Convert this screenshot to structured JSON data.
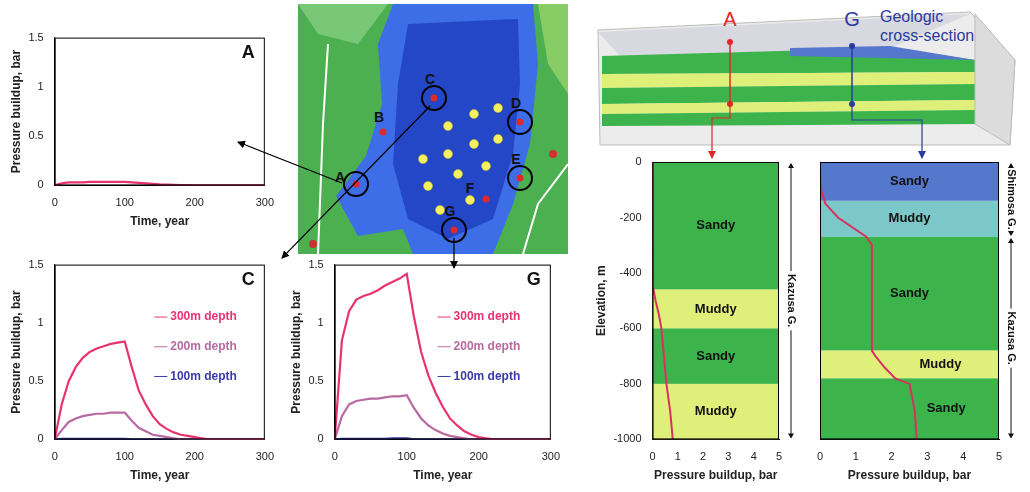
{
  "chart_data": [
    {
      "type": "line",
      "title": "A",
      "x_label": "Time, year",
      "y_label": "Pressure buildup, bar",
      "xlim": [
        0,
        300
      ],
      "xticks": [
        0,
        100,
        200,
        300
      ],
      "ylim": [
        0,
        1.5
      ],
      "yticks": [
        0,
        0.5,
        1,
        1.5
      ],
      "grid": false,
      "x": [
        0,
        10,
        20,
        30,
        40,
        50,
        60,
        70,
        80,
        90,
        100,
        110,
        120,
        130,
        140,
        150,
        160,
        170,
        180,
        190,
        200,
        210,
        220,
        230,
        240,
        250,
        260,
        270,
        280,
        290,
        300
      ],
      "series": [
        {
          "color": "#e8336f",
          "values": [
            0,
            0.02,
            0.03,
            0.03,
            0.03,
            0.035,
            0.035,
            0.035,
            0.035,
            0.035,
            0.035,
            0.03,
            0.025,
            0.02,
            0.015,
            0.01,
            0.008,
            0.005,
            0.003,
            0.002,
            0.001,
            0,
            0,
            0,
            0,
            0,
            0,
            0,
            0,
            0,
            0
          ]
        }
      ]
    },
    {
      "type": "line",
      "title": "C",
      "x_label": "Time, year",
      "y_label": "Pressure buildup, bar",
      "xlim": [
        0,
        300
      ],
      "xticks": [
        0,
        100,
        200,
        300
      ],
      "ylim": [
        0,
        1.5
      ],
      "yticks": [
        0,
        0.5,
        1,
        1.5
      ],
      "grid": false,
      "x": [
        0,
        10,
        20,
        30,
        40,
        50,
        60,
        70,
        80,
        90,
        100,
        110,
        120,
        130,
        140,
        150,
        160,
        170,
        180,
        190,
        200,
        210,
        220,
        230,
        240,
        250,
        260,
        270,
        280,
        290,
        300
      ],
      "series": [
        {
          "name": "300m depth",
          "color": "#e8336f",
          "values": [
            0,
            0.3,
            0.5,
            0.62,
            0.7,
            0.75,
            0.78,
            0.8,
            0.82,
            0.83,
            0.84,
            0.62,
            0.42,
            0.3,
            0.2,
            0.13,
            0.09,
            0.06,
            0.04,
            0.03,
            0.02,
            0.01,
            0,
            0,
            0,
            0,
            0,
            0,
            0,
            0,
            0
          ]
        },
        {
          "name": "200m depth",
          "color": "#b86aa0",
          "values": [
            0,
            0.08,
            0.15,
            0.18,
            0.2,
            0.21,
            0.22,
            0.22,
            0.23,
            0.23,
            0.23,
            0.16,
            0.1,
            0.07,
            0.04,
            0.03,
            0.02,
            0.01,
            0,
            0,
            0,
            0,
            0,
            0,
            0,
            0,
            0,
            0,
            0,
            0,
            0
          ]
        },
        {
          "name": "100m depth",
          "color": "#3a3aa8",
          "values": [
            0,
            0.005,
            0.005,
            0.005,
            0.005,
            0.005,
            0.005,
            0.005,
            0.005,
            0.005,
            0.005,
            0,
            0,
            0,
            0,
            0,
            0,
            0,
            0,
            0,
            0,
            0,
            0,
            0,
            0,
            0,
            0,
            0,
            0,
            0,
            0
          ]
        }
      ]
    },
    {
      "type": "line",
      "title": "G",
      "x_label": "Time, year",
      "y_label": "Pressure buildup, bar",
      "xlim": [
        0,
        300
      ],
      "xticks": [
        0,
        100,
        200,
        300
      ],
      "ylim": [
        0,
        1.5
      ],
      "yticks": [
        0,
        0.5,
        1,
        1.5
      ],
      "grid": false,
      "x": [
        0,
        10,
        20,
        30,
        40,
        50,
        60,
        70,
        80,
        90,
        100,
        110,
        120,
        130,
        140,
        150,
        160,
        170,
        180,
        190,
        200,
        210,
        220,
        230,
        240,
        250,
        260,
        270,
        280,
        290,
        300
      ],
      "series": [
        {
          "name": "300m depth",
          "color": "#e8336f",
          "values": [
            0,
            0.85,
            1.1,
            1.2,
            1.23,
            1.25,
            1.28,
            1.32,
            1.35,
            1.38,
            1.42,
            1.05,
            0.75,
            0.55,
            0.4,
            0.28,
            0.18,
            0.12,
            0.07,
            0.04,
            0.02,
            0.01,
            0,
            0,
            0,
            0,
            0,
            0,
            0,
            0,
            0
          ]
        },
        {
          "name": "200m depth",
          "color": "#b86aa0",
          "values": [
            0,
            0.2,
            0.3,
            0.33,
            0.34,
            0.35,
            0.35,
            0.36,
            0.37,
            0.37,
            0.38,
            0.27,
            0.18,
            0.12,
            0.08,
            0.05,
            0.03,
            0.02,
            0.01,
            0,
            0,
            0,
            0,
            0,
            0,
            0,
            0,
            0,
            0,
            0,
            0
          ]
        },
        {
          "name": "100m depth",
          "color": "#3a3aa8",
          "values": [
            0,
            0.005,
            0.005,
            0.005,
            0.005,
            0.005,
            0.005,
            0.005,
            0.008,
            0.01,
            0.01,
            0,
            0,
            0,
            0,
            0,
            0,
            0,
            0,
            0,
            0,
            0,
            0,
            0,
            0,
            0,
            0,
            0,
            0,
            0,
            0
          ]
        }
      ]
    },
    {
      "type": "line",
      "x_label": "Pressure buildup, bar",
      "y_label": "Elevation, m",
      "xlim": [
        0,
        5
      ],
      "xticks": [
        0,
        1,
        2,
        3,
        4,
        5
      ],
      "ylim": [
        -1000,
        0
      ],
      "yticks": [
        -1000,
        -800,
        -600,
        -400,
        -200,
        0
      ],
      "grid": false,
      "layers": [
        {
          "name": "Sandy",
          "top": 0,
          "bottom": -460,
          "color": "#3cb44b"
        },
        {
          "name": "Muddy",
          "top": -460,
          "bottom": -600,
          "color": "#dff07a"
        },
        {
          "name": "Sandy",
          "top": -600,
          "bottom": -800,
          "color": "#3cb44b"
        },
        {
          "name": "Muddy",
          "top": -800,
          "bottom": -1000,
          "color": "#dff07a"
        }
      ],
      "groups": [
        {
          "name": "Kazusa G.",
          "top": 0,
          "bottom": -1000
        }
      ],
      "series": [
        {
          "color": "#d9305f",
          "x": [
            0,
            0.02,
            0.12,
            0.25,
            0.35,
            0.45,
            0.55,
            0.7,
            0.8
          ],
          "values": [
            0,
            -450,
            -500,
            -550,
            -600,
            -700,
            -800,
            -900,
            -1000
          ]
        }
      ]
    },
    {
      "type": "line",
      "x_label": "Pressure buildup, bar",
      "tick_labels": "x",
      "xlim": [
        0,
        5
      ],
      "xticks": [
        0,
        1,
        2,
        3,
        4,
        5
      ],
      "ylim": [
        -1000,
        0
      ],
      "yticks": [
        -1000,
        -800,
        -600,
        -400,
        -200,
        0
      ],
      "grid": false,
      "layers": [
        {
          "name": "Sandy",
          "top": 0,
          "bottom": -140,
          "color": "#5577cc"
        },
        {
          "name": "Muddy",
          "top": -140,
          "bottom": -270,
          "color": "#7cc8c8"
        },
        {
          "name": "Sandy",
          "top": -270,
          "bottom": -680,
          "color": "#3cb44b"
        },
        {
          "name": "Muddy",
          "top": -680,
          "bottom": -780,
          "color": "#dff07a"
        },
        {
          "name": "Sandy",
          "top": -780,
          "bottom": -1000,
          "color": "#3cb44b"
        }
      ],
      "groups": [
        {
          "name": "Shimosa G.",
          "top": 0,
          "bottom": -270
        },
        {
          "name": "Kazusa G.",
          "top": -270,
          "bottom": -1000
        }
      ],
      "series": [
        {
          "color": "#d9305f",
          "x": [
            0,
            0.03,
            0.15,
            0.5,
            1.3,
            1.45,
            1.45,
            1.55,
            1.8,
            2.1,
            2.5,
            2.65,
            2.7
          ],
          "values": [
            0,
            -100,
            -150,
            -200,
            -270,
            -300,
            -680,
            -700,
            -740,
            -780,
            -800,
            -900,
            -1000
          ]
        }
      ]
    }
  ],
  "map": {
    "points": [
      "A",
      "B",
      "C",
      "D",
      "E",
      "F",
      "G"
    ],
    "circled": [
      "A",
      "C",
      "D",
      "E",
      "G"
    ]
  },
  "model": {
    "labels": [
      "A",
      "G"
    ],
    "caption": "Geologic cross-section"
  }
}
